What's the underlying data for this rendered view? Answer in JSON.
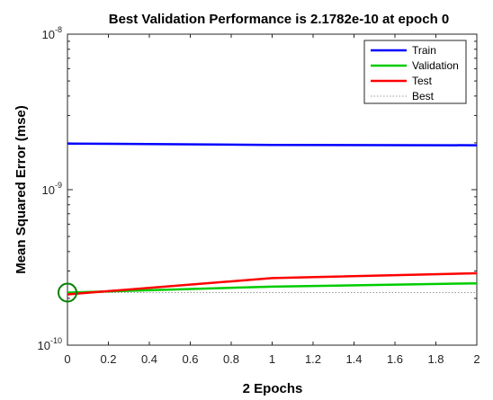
{
  "chart_data": {
    "type": "line",
    "title": "Best Validation Performance is 2.1782e-10 at epoch 0",
    "xlabel": "2 Epochs",
    "ylabel": "Mean Squared Error  (mse)",
    "xlim": [
      0,
      2
    ],
    "ylim": [
      1e-10,
      1e-08
    ],
    "yscale": "log",
    "xticks": [
      "0",
      "0.2",
      "0.4",
      "0.6",
      "0.8",
      "1",
      "1.2",
      "1.4",
      "1.6",
      "1.8",
      "2"
    ],
    "yticks": [
      {
        "value": 1e-10,
        "base": "10",
        "exp": "-10"
      },
      {
        "value": 1e-09,
        "base": "10",
        "exp": "-9"
      },
      {
        "value": 1e-08,
        "base": "10",
        "exp": "-8"
      }
    ],
    "grid": false,
    "legend_position": "top-right",
    "x": [
      0,
      1,
      2
    ],
    "series": [
      {
        "name": "Train",
        "color": "#0000ff",
        "style": "solid",
        "values": [
          1.98e-09,
          1.94e-09,
          1.93e-09
        ]
      },
      {
        "name": "Validation",
        "color": "#00cc00",
        "style": "solid",
        "values": [
          2.1782e-10,
          2.38e-10,
          2.5e-10
        ]
      },
      {
        "name": "Test",
        "color": "#ff0000",
        "style": "solid",
        "values": [
          2.12e-10,
          2.7e-10,
          2.9e-10
        ]
      },
      {
        "name": "Best",
        "color": "#00cc00",
        "style": "dotted",
        "values": [
          2.1782e-10,
          2.1782e-10,
          2.1782e-10
        ]
      }
    ],
    "best_marker": {
      "x": 0,
      "y": 2.1782e-10,
      "color": "#008000",
      "shape": "circle"
    }
  }
}
